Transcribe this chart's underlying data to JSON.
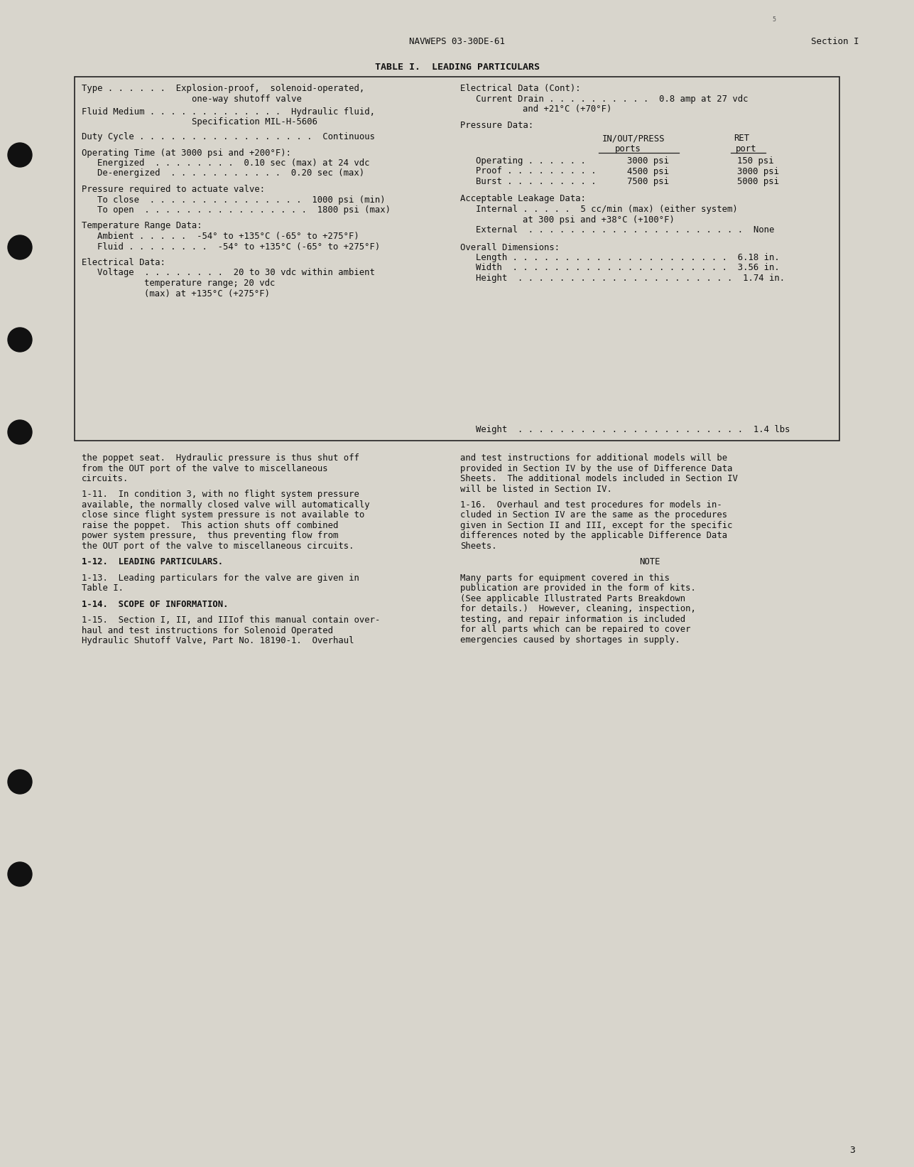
{
  "bg_color": "#d8d5cc",
  "header_left": "NAVWEPS 03-30DE-61",
  "header_right": "Section I",
  "table_title": "TABLE I.  LEADING PARTICULARS",
  "page_number": "3",
  "body_left": [
    "the poppet seat.  Hydraulic pressure is thus shut off",
    "from the OUT port of the valve to miscellaneous",
    "circuits.",
    "",
    "1-11.  In condition 3, with no flight system pressure",
    "available, the normally closed valve will automatically",
    "close since flight system pressure is not available to",
    "raise the poppet.  This action shuts off combined",
    "power system pressure,  thus preventing flow from",
    "the OUT port of the valve to miscellaneous circuits.",
    "",
    "1-12.  LEADING PARTICULARS.",
    "",
    "1-13.  Leading particulars for the valve are given in",
    "Table I.",
    "",
    "1-14.  SCOPE OF INFORMATION.",
    "",
    "1-15.  Section I, II, and IIIof this manual contain over-",
    "haul and test instructions for Solenoid Operated",
    "Hydraulic Shutoff Valve, Part No. 18190-1.  Overhaul"
  ],
  "body_right": [
    "and test instructions for additional models will be",
    "provided in Section IV by the use of Difference Data",
    "Sheets.  The additional models included in Section IV",
    "will be listed in Section IV.",
    "",
    "1-16.  Overhaul and test procedures for models in-",
    "cluded in Section IV are the same as the procedures",
    "given in Section II and III, except for the specific",
    "differences noted by the applicable Difference Data",
    "Sheets.",
    "",
    "NOTE",
    "",
    "Many parts for equipment covered in this",
    "publication are provided in the form of kits.",
    "(See applicable Illustrated Parts Breakdown",
    "for details.)  However, cleaning, inspection,",
    "testing, and repair information is included",
    "for all parts which can be repaired to cover",
    "emergencies caused by shortages in supply."
  ]
}
